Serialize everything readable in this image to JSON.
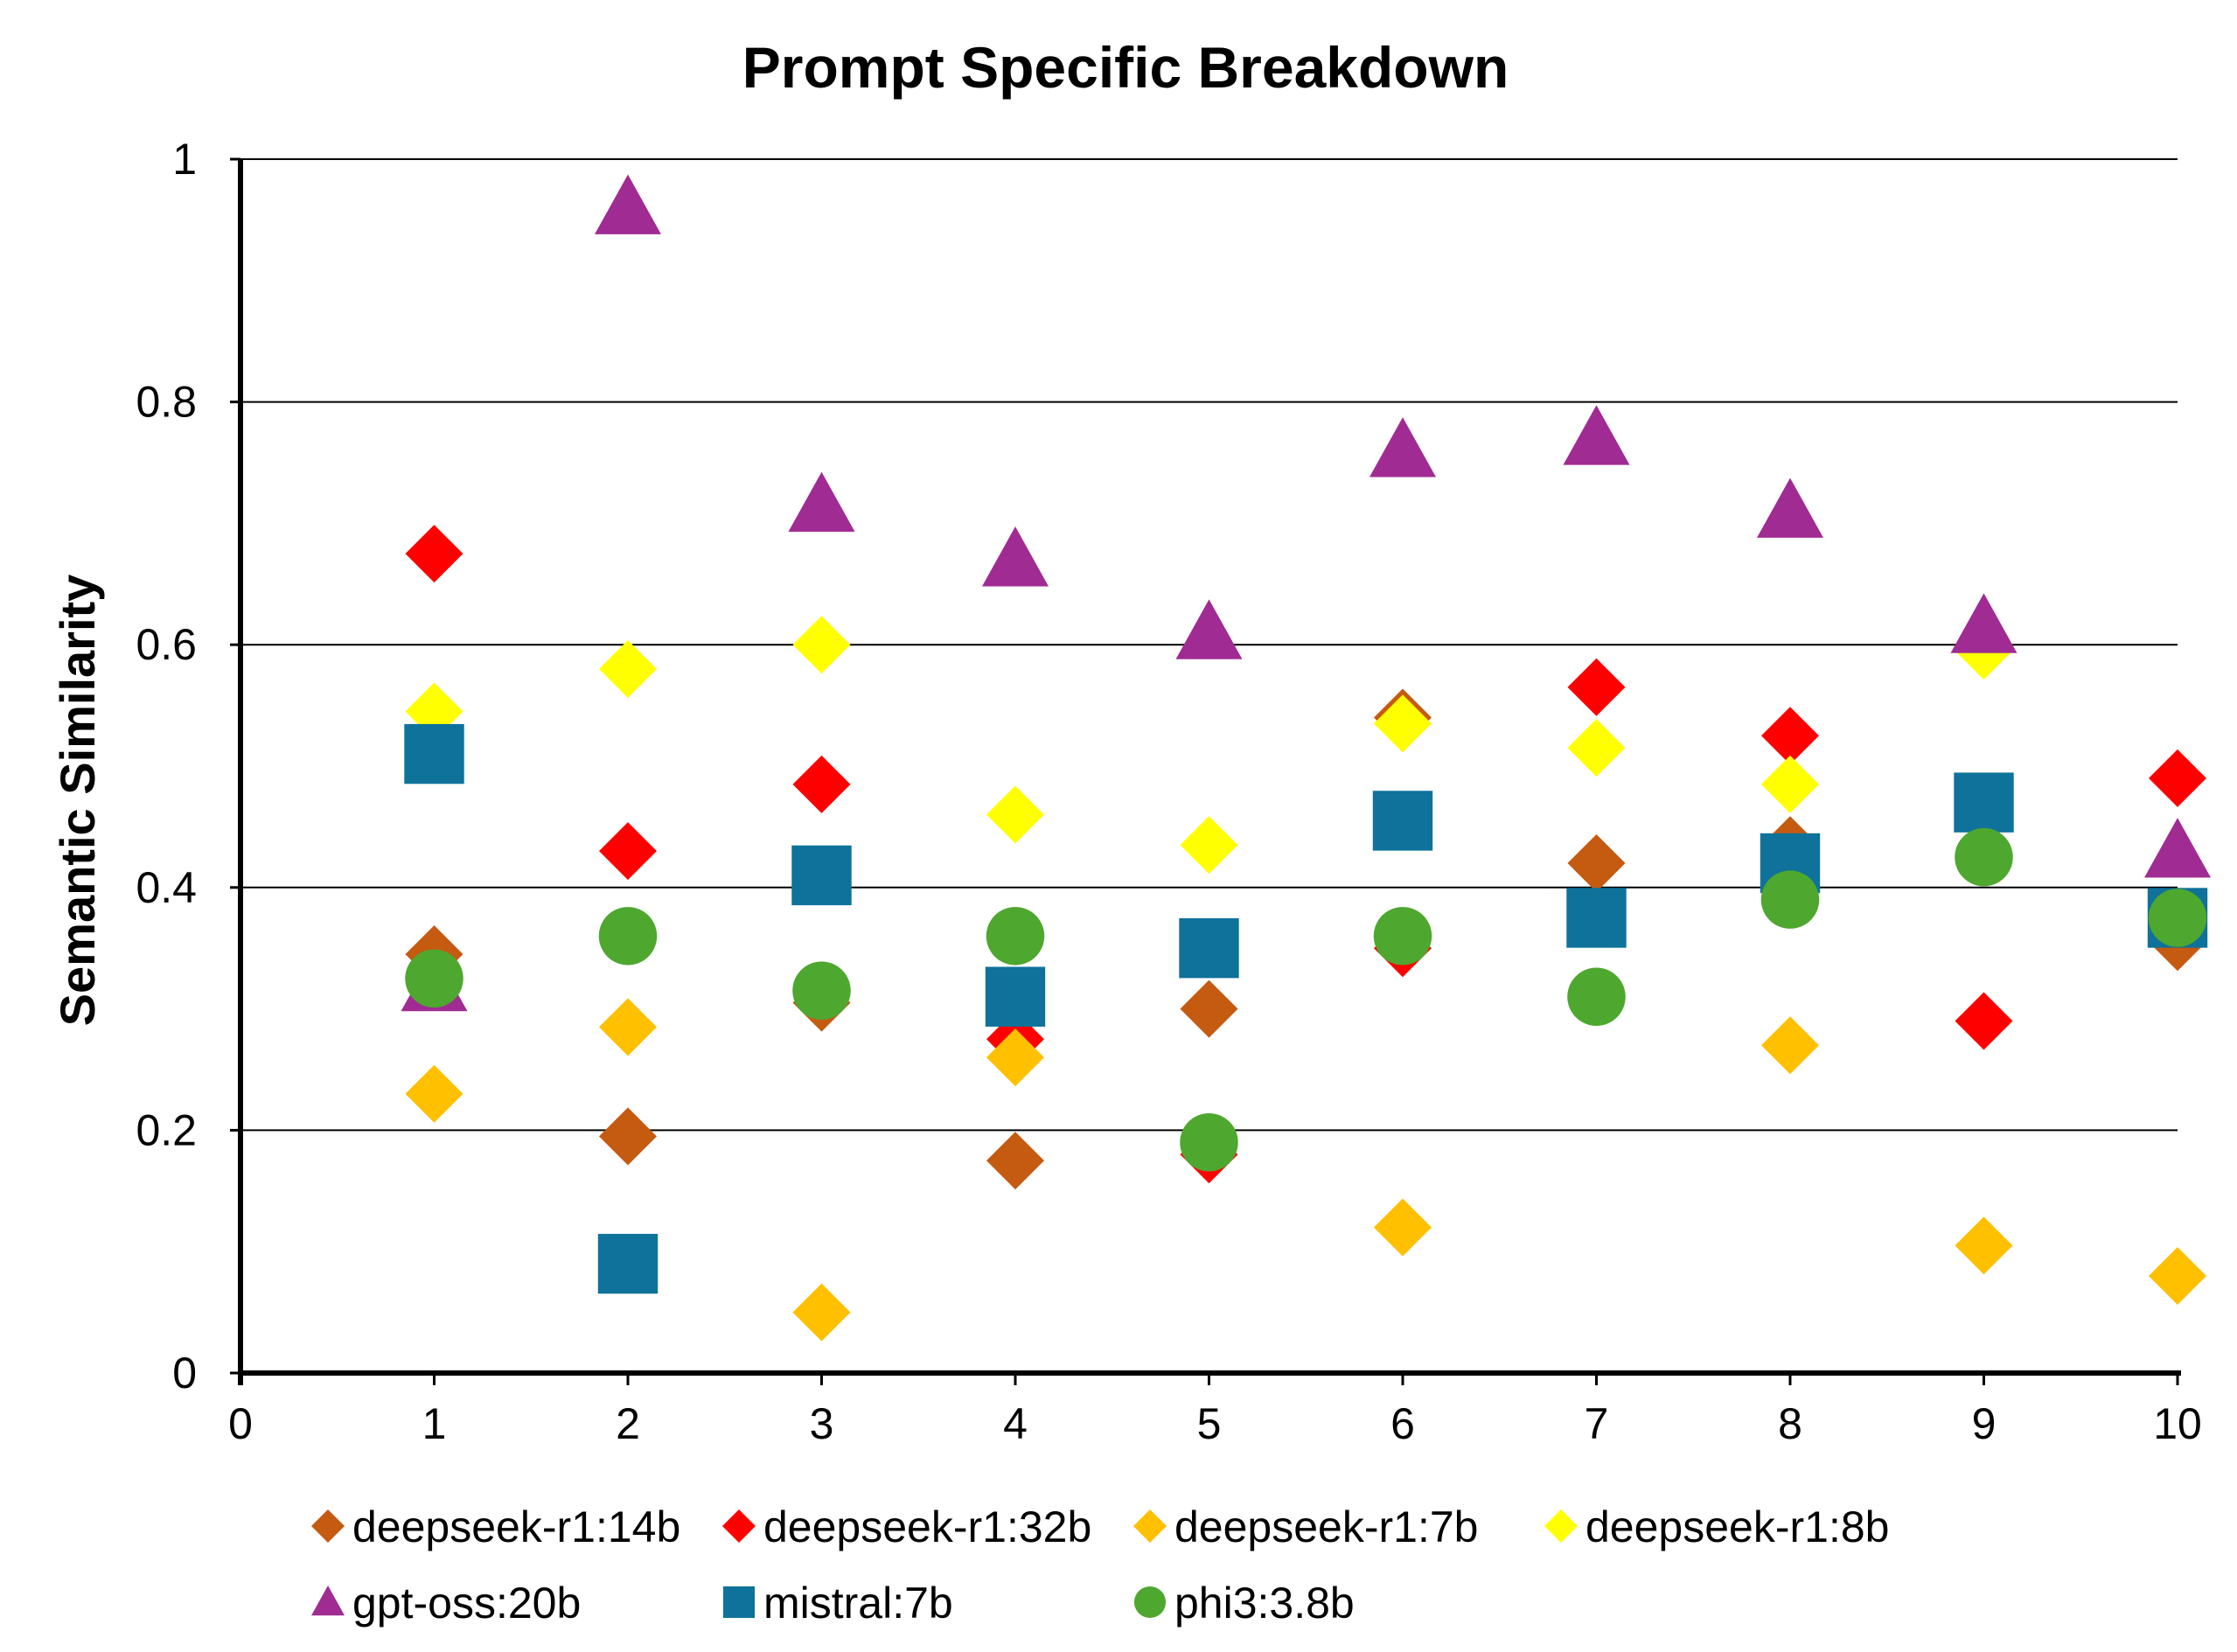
{
  "chart_data": {
    "type": "scatter",
    "title": "Prompt Specific Breakdown",
    "xlabel": "",
    "ylabel": "Semantic Similarity",
    "xlim": [
      0,
      10
    ],
    "ylim": [
      0,
      1
    ],
    "x_ticks": [
      0,
      1,
      2,
      3,
      4,
      5,
      6,
      7,
      8,
      9,
      10
    ],
    "y_ticks": [
      0,
      0.2,
      0.4,
      0.6,
      0.8,
      1
    ],
    "y_tick_labels": [
      "0",
      "0.2",
      "0.4",
      "0.6",
      "0.8",
      "1"
    ],
    "x_tick_labels": [
      "0",
      "1",
      "2",
      "3",
      "4",
      "5",
      "6",
      "7",
      "8",
      "9",
      "10"
    ],
    "grid": "horizontal",
    "legend_position": "bottom",
    "x": [
      1,
      2,
      3,
      4,
      5,
      6,
      7,
      8,
      9,
      10
    ],
    "series": [
      {
        "name": "deepseek-r1:14b",
        "marker": "diamond",
        "color": "#C55A11",
        "values": [
          0.345,
          0.195,
          0.305,
          0.175,
          0.3,
          0.54,
          0.42,
          0.435,
          null,
          0.355
        ]
      },
      {
        "name": "deepseek-r1:32b",
        "marker": "diamond",
        "color": "#FF0000",
        "values": [
          0.675,
          0.43,
          0.485,
          0.275,
          0.18,
          0.35,
          0.565,
          0.525,
          0.29,
          0.49
        ]
      },
      {
        "name": "deepseek-r1:7b",
        "marker": "diamond",
        "color": "#FFC000",
        "values": [
          0.23,
          0.285,
          0.05,
          0.26,
          null,
          0.12,
          null,
          0.27,
          0.105,
          0.08
        ]
      },
      {
        "name": "deepseek-r1:8b",
        "marker": "diamond",
        "color": "#FFFF00",
        "values": [
          0.545,
          0.58,
          0.6,
          0.46,
          0.435,
          0.535,
          0.515,
          0.485,
          0.595,
          null
        ]
      },
      {
        "name": "gpt-oss:20b",
        "marker": "triangle",
        "color": "#A02B93",
        "values": [
          0.32,
          0.96,
          0.715,
          0.67,
          0.61,
          0.76,
          0.77,
          0.71,
          0.615,
          0.43
        ]
      },
      {
        "name": "mistral:7b",
        "marker": "square",
        "color": "#0E729A",
        "values": [
          0.51,
          0.09,
          0.41,
          0.31,
          0.35,
          0.455,
          0.375,
          0.42,
          0.47,
          0.375
        ]
      },
      {
        "name": "phi3:3.8b",
        "marker": "circle",
        "color": "#4EA72E",
        "values": [
          0.325,
          0.36,
          0.315,
          0.36,
          0.19,
          0.36,
          0.31,
          0.39,
          0.425,
          0.375
        ]
      }
    ]
  }
}
